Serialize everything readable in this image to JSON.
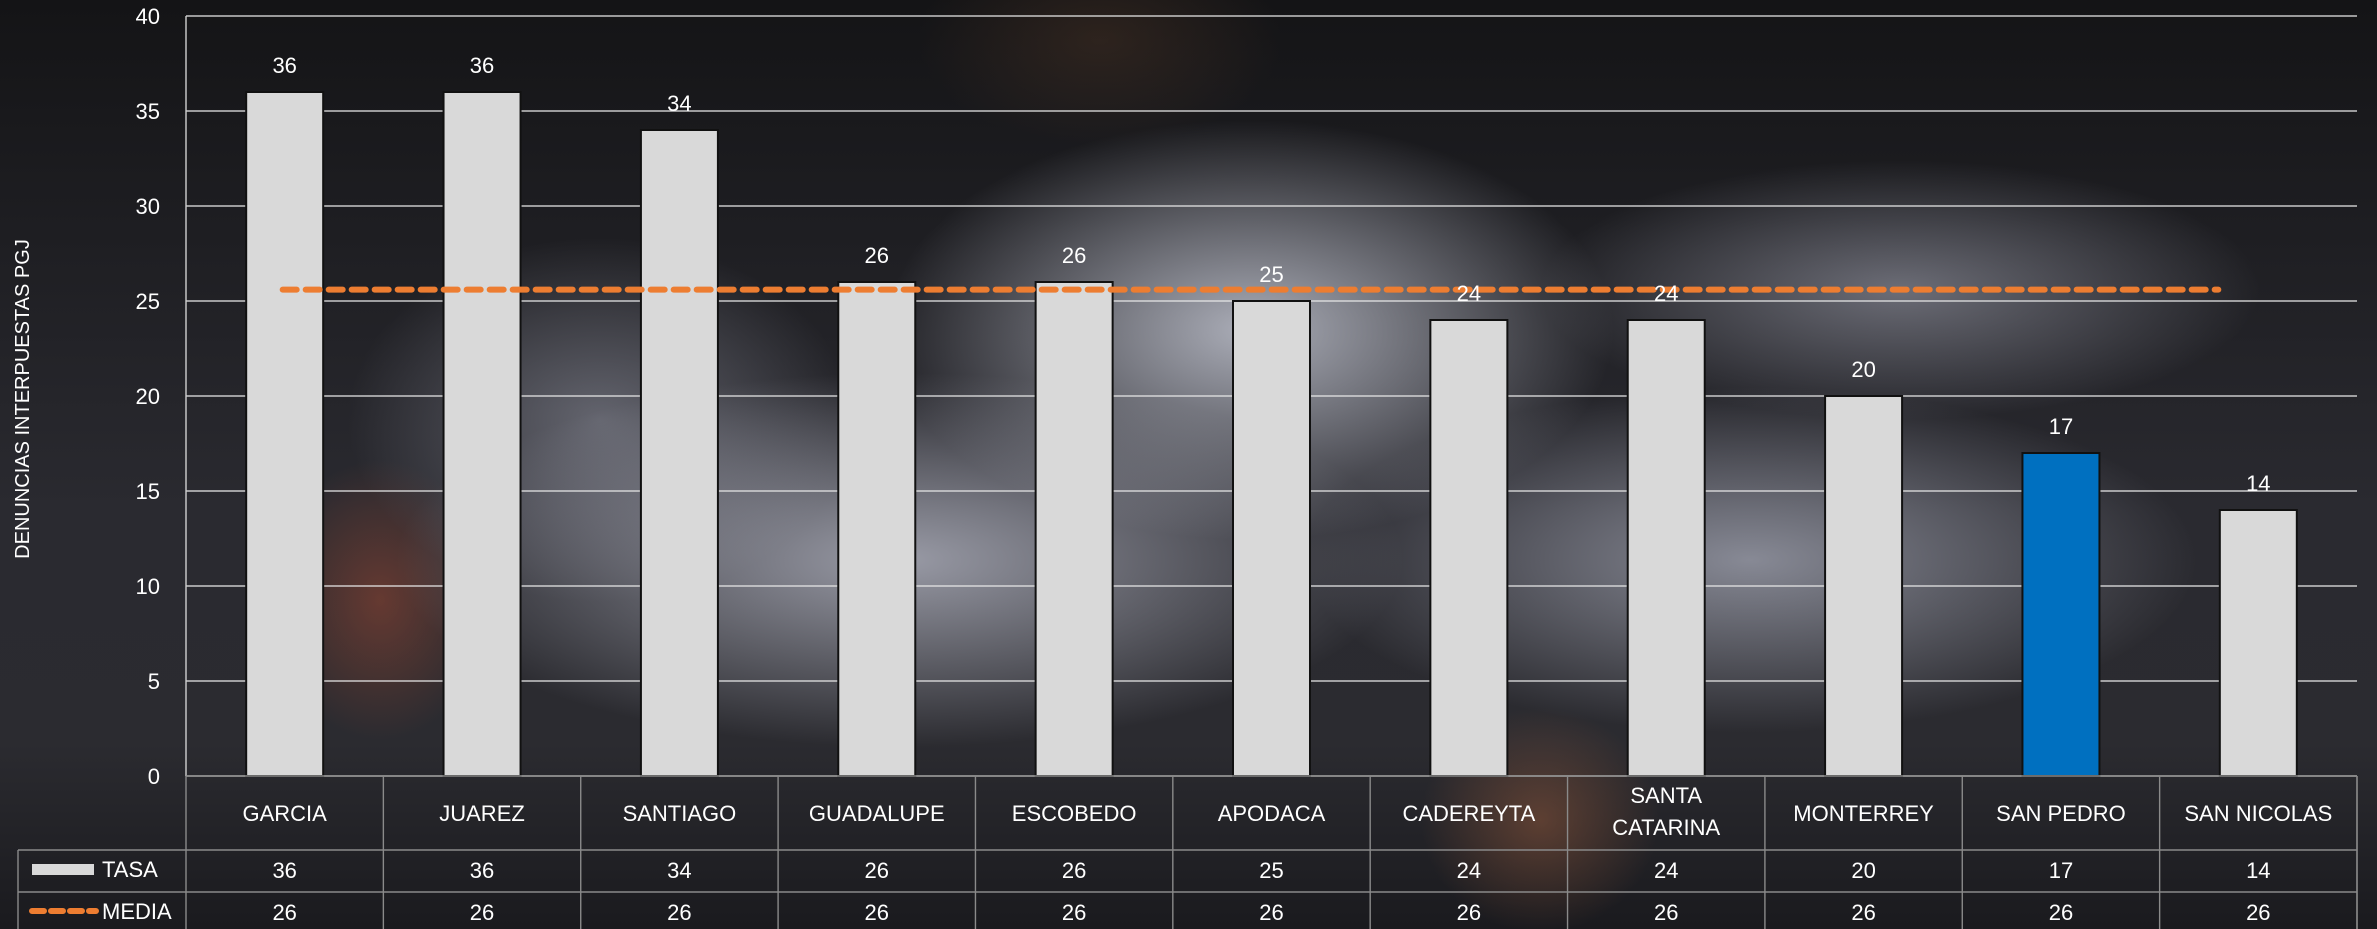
{
  "chart_data": {
    "type": "bar",
    "ylabel": "DENUNCIAS INTERPUESTAS PGJ",
    "ylim": [
      0,
      40
    ],
    "yticks": [
      0,
      5,
      10,
      15,
      20,
      25,
      30,
      35,
      40
    ],
    "grid": true,
    "categories": [
      "GARCIA",
      "JUAREZ",
      "SANTIAGO",
      "GUADALUPE",
      "ESCOBEDO",
      "APODACA",
      "CADEREYTA",
      "SANTA CATARINA",
      "MONTERREY",
      "SAN PEDRO",
      "SAN NICOLAS"
    ],
    "series": [
      {
        "name": "TASA",
        "kind": "bar",
        "color": "#d9d9d9",
        "highlight": {
          "category": "SAN PEDRO",
          "color": "#0070c0"
        },
        "values": [
          36,
          36,
          34,
          26,
          26,
          25,
          24,
          24,
          20,
          17,
          14
        ]
      },
      {
        "name": "MEDIA",
        "kind": "dashed-line",
        "color": "#ed7d31",
        "values": [
          25.6,
          25.6,
          25.6,
          25.6,
          25.6,
          25.6,
          25.6,
          25.6,
          25.6,
          25.6,
          25.6
        ],
        "table_values": [
          "26",
          "26",
          "26",
          "26",
          "26",
          "26",
          "26",
          "26",
          "26",
          "26",
          "26"
        ]
      }
    ],
    "data_table": true
  }
}
